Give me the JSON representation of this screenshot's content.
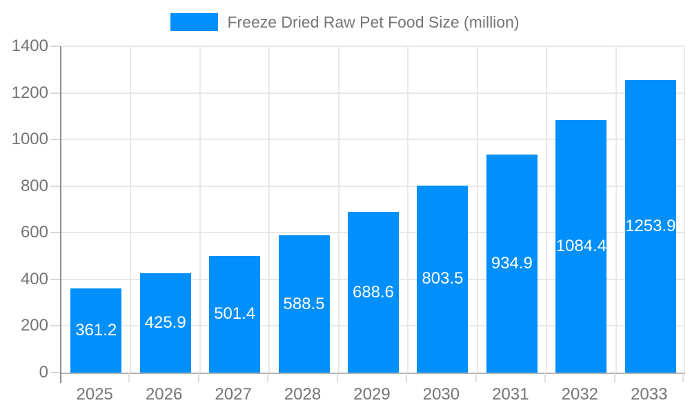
{
  "chart_data": {
    "type": "bar",
    "title": "Freeze Dried Raw Pet Food Size (million)",
    "categories": [
      "2025",
      "2026",
      "2027",
      "2028",
      "2029",
      "2030",
      "2031",
      "2032",
      "2033"
    ],
    "series": [
      {
        "name": "Freeze Dried Raw Pet Food Size (million)",
        "values": [
          361.2,
          425.9,
          501.4,
          588.5,
          688.6,
          803.5,
          934.9,
          1084.4,
          1253.9
        ]
      }
    ],
    "xlabel": "",
    "ylabel": "",
    "ylim": [
      0,
      1400
    ],
    "yticks": [
      0,
      200,
      400,
      600,
      800,
      1000,
      1200,
      1400
    ],
    "grid": true,
    "legend_position": "top",
    "value_decimals": 1,
    "colors": {
      "bar": "#008FFB",
      "bar_label": "#FFFFFF",
      "axis_text": "#737373",
      "legend_text": "#757575"
    }
  }
}
